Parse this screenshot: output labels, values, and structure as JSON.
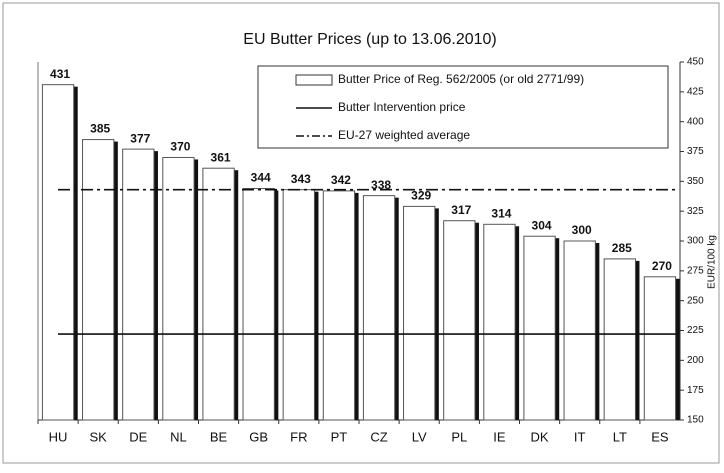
{
  "chart_data": {
    "type": "bar",
    "title": "EU Butter Prices  (up to 13.06.2010)",
    "y_axis_label": "EUR/100 kg",
    "categories": [
      "HU",
      "SK",
      "DE",
      "NL",
      "BE",
      "GB",
      "FR",
      "PT",
      "CZ",
      "LV",
      "PL",
      "IE",
      "DK",
      "IT",
      "LT",
      "ES"
    ],
    "series": [
      {
        "name": "Butter Price of Reg. 562/2005 (or old 2771/99)",
        "color": "#ffffff",
        "values": [
          431,
          385,
          377,
          370,
          361,
          344,
          343,
          342,
          338,
          329,
          317,
          314,
          304,
          300,
          285,
          270
        ]
      }
    ],
    "reference_lines": [
      {
        "name": "Butter Intervention price",
        "value": 222,
        "style": "solid"
      },
      {
        "name": "EU-27 weighted average",
        "value": 343,
        "style": "dashdot"
      }
    ],
    "ylim": [
      150,
      450
    ],
    "yticks": [
      150,
      175,
      200,
      225,
      250,
      275,
      300,
      325,
      350,
      375,
      400,
      425,
      450
    ],
    "y_axis_side": "right",
    "grid": false
  }
}
